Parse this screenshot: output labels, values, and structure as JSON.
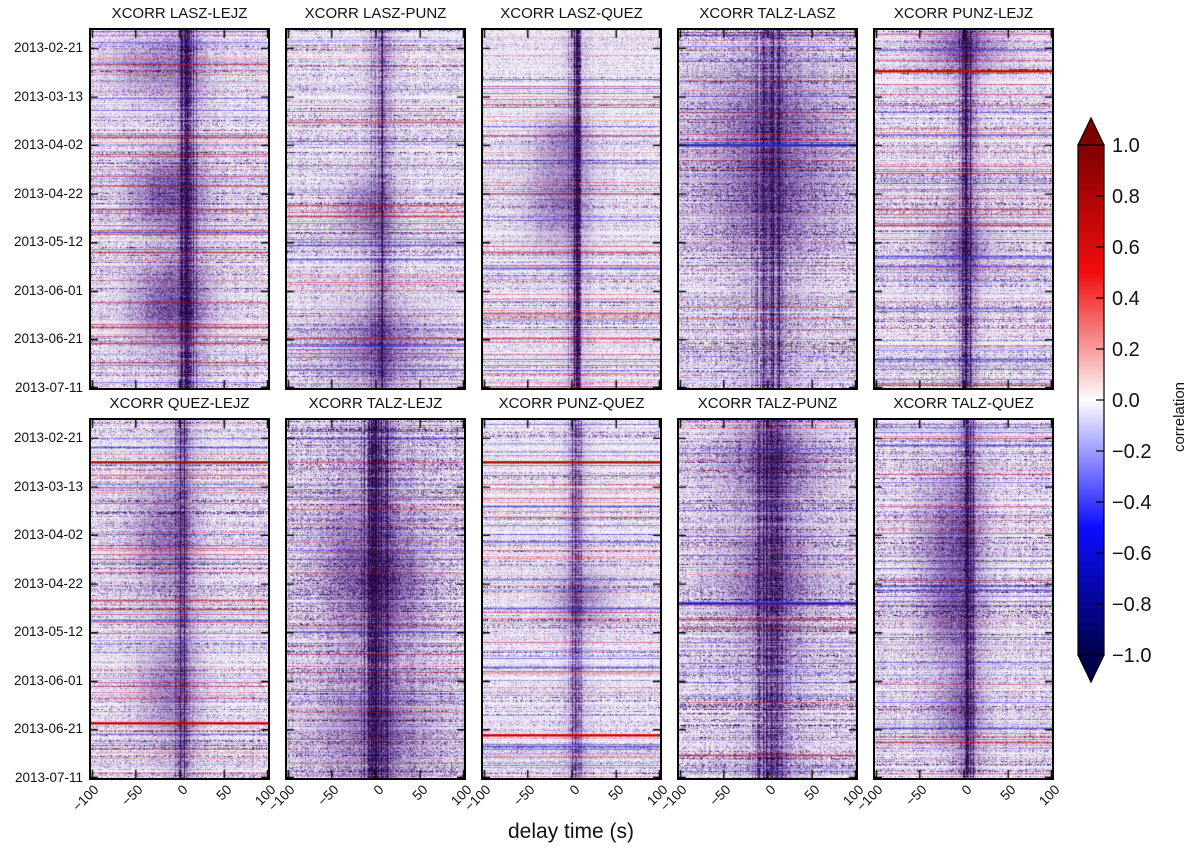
{
  "chart_data": {
    "type": "heatmap",
    "layout": {
      "rows": 2,
      "cols": 5,
      "grid": true
    },
    "xlabel": "delay time (s)",
    "x_range": [
      -100,
      100
    ],
    "x_ticks": [
      -100,
      -50,
      0,
      50,
      100
    ],
    "x_tick_labels": [
      "−100",
      "−50",
      "0",
      "50",
      "100"
    ],
    "y_tick_labels": [
      "2013-02-21",
      "2013-03-13",
      "2013-04-02",
      "2013-04-22",
      "2013-05-12",
      "2013-06-01",
      "2013-06-21",
      "2013-07-11"
    ],
    "colorbar": {
      "label": "correlation",
      "range": [
        -1.0,
        1.0
      ],
      "ticks": [
        "1.0",
        "0.8",
        "0.6",
        "0.4",
        "0.2",
        "0.0",
        "−0.2",
        "−0.4",
        "−0.6",
        "−0.8",
        "−1.0"
      ],
      "colormap": "seismic",
      "extend": "both",
      "colors": {
        "top": "#7f0000",
        "mid_red": "#f20d0d",
        "zero": "#fdfcff",
        "mid_blue": "#0d0dff",
        "bottom": "#00004d"
      }
    },
    "heatmap_colors": {
      "background": "#f7f4fb",
      "mid_purple": "#7a54a8",
      "dark_purple": "#260848",
      "red_event": "#cc1408",
      "blue_event": "#3136c8"
    },
    "panels": [
      {
        "title": "XCORR LASZ-LEJZ",
        "row": 0,
        "col": 0,
        "seed": 11,
        "noise": 0.55,
        "tint": 1.0,
        "band": {
          "center": 0.545,
          "width": 4.0,
          "strength": 0.95
        },
        "blobs": [
          {
            "x": 0.42,
            "y": 0.46,
            "rx": 0.13,
            "ry": 0.07,
            "a": 0.5
          },
          {
            "x": 0.44,
            "y": 0.77,
            "rx": 0.14,
            "ry": 0.08,
            "a": 0.55
          },
          {
            "x": 0.37,
            "y": 0.1,
            "rx": 0.16,
            "ry": 0.06,
            "a": 0.32
          }
        ],
        "lines": [
          {
            "y": 0.095,
            "color": "red",
            "type": "speckle"
          },
          {
            "y": 0.3,
            "color": "red",
            "type": "speckle"
          },
          {
            "y": 0.5,
            "color": "red",
            "type": "speckle"
          },
          {
            "y": 0.565,
            "color": "blue",
            "type": "speckle"
          },
          {
            "y": 0.62,
            "color": "red",
            "type": "speckle"
          },
          {
            "y": 0.83,
            "color": "red",
            "type": "speckle"
          },
          {
            "y": 0.875,
            "color": "red",
            "type": "speckle"
          }
        ]
      },
      {
        "title": "XCORR LASZ-PUNZ",
        "row": 0,
        "col": 1,
        "seed": 22,
        "noise": 0.55,
        "tint": 1.0,
        "band": {
          "center": 0.53,
          "width": 3.5,
          "strength": 0.9
        },
        "blobs": [
          {
            "x": 0.45,
            "y": 0.5,
            "rx": 0.11,
            "ry": 0.06,
            "a": 0.32
          },
          {
            "x": 0.5,
            "y": 0.88,
            "rx": 0.2,
            "ry": 0.08,
            "a": 0.38
          }
        ],
        "lines": [
          {
            "y": 0.49,
            "color": "red",
            "type": "speckle"
          },
          {
            "y": 0.52,
            "color": "red",
            "type": "speckle"
          },
          {
            "y": 0.6,
            "color": "blue",
            "type": "speckle"
          },
          {
            "y": 0.64,
            "color": "blue",
            "type": "speckle"
          },
          {
            "y": 0.86,
            "color": "red",
            "type": "speckle"
          }
        ]
      },
      {
        "title": "XCORR LASZ-QUEZ",
        "row": 0,
        "col": 2,
        "seed": 33,
        "noise": 0.4,
        "tint": 0.9,
        "band": {
          "center": 0.52,
          "width": 2.6,
          "strength": 0.95
        },
        "blobs": [
          {
            "x": 0.42,
            "y": 0.47,
            "rx": 0.12,
            "ry": 0.09,
            "a": 0.38
          },
          {
            "x": 0.45,
            "y": 0.3,
            "rx": 0.1,
            "ry": 0.05,
            "a": 0.26
          }
        ],
        "lines": [
          {
            "y": 0.62,
            "color": "red",
            "type": "speckle"
          },
          {
            "y": 0.665,
            "color": "blue",
            "type": "speckle"
          },
          {
            "y": 0.79,
            "color": "red",
            "type": "speckle"
          },
          {
            "y": 0.86,
            "color": "red",
            "type": "speckle"
          }
        ]
      },
      {
        "title": "XCORR TALZ-LASZ",
        "row": 0,
        "col": 3,
        "seed": 44,
        "noise": 0.78,
        "tint": 0.8,
        "band": {
          "center": 0.52,
          "width": 7.0,
          "strength": 0.8
        },
        "blobs": [
          {
            "x": 0.5,
            "y": 0.25,
            "rx": 0.3,
            "ry": 0.1,
            "a": 0.3
          },
          {
            "x": 0.52,
            "y": 0.47,
            "rx": 0.25,
            "ry": 0.1,
            "a": 0.35
          }
        ],
        "lines": [
          {
            "y": 0.32,
            "color": "blue",
            "type": "solid"
          },
          {
            "y": 0.015,
            "color": "blue",
            "type": "speckle"
          }
        ]
      },
      {
        "title": "XCORR PUNZ-LEJZ",
        "row": 0,
        "col": 4,
        "seed": 55,
        "noise": 0.6,
        "tint": 1.1,
        "band": {
          "center": 0.52,
          "width": 3.0,
          "strength": 1.0
        },
        "blobs": [
          {
            "x": 0.5,
            "y": 0.05,
            "rx": 0.15,
            "ry": 0.05,
            "a": 0.42
          },
          {
            "x": 0.48,
            "y": 0.6,
            "rx": 0.12,
            "ry": 0.06,
            "a": 0.3
          }
        ],
        "lines": [
          {
            "y": 0.115,
            "color": "red",
            "type": "solid"
          },
          {
            "y": 0.5,
            "color": "red",
            "type": "speckle"
          },
          {
            "y": 0.545,
            "color": "red",
            "type": "speckle"
          },
          {
            "y": 0.63,
            "color": "blue",
            "type": "speckle"
          },
          {
            "y": 0.66,
            "color": "blue",
            "type": "speckle"
          },
          {
            "y": 0.92,
            "color": "blue",
            "type": "speckle"
          }
        ]
      },
      {
        "title": "XCORR QUEZ-LEJZ",
        "row": 1,
        "col": 0,
        "seed": 66,
        "noise": 0.55,
        "tint": 1.0,
        "band": {
          "center": 0.51,
          "width": 3.5,
          "strength": 0.95
        },
        "blobs": [
          {
            "x": 0.4,
            "y": 0.33,
            "rx": 0.12,
            "ry": 0.1,
            "a": 0.36
          },
          {
            "x": 0.42,
            "y": 0.75,
            "rx": 0.12,
            "ry": 0.1,
            "a": 0.3
          }
        ],
        "lines": [
          {
            "y": 0.075,
            "color": "blue",
            "type": "speckle"
          },
          {
            "y": 0.117,
            "color": "red",
            "type": "solid"
          },
          {
            "y": 0.503,
            "color": "red",
            "type": "speckle"
          },
          {
            "y": 0.527,
            "color": "red",
            "type": "speckle"
          },
          {
            "y": 0.56,
            "color": "blue",
            "type": "speckle"
          },
          {
            "y": 0.845,
            "color": "red",
            "type": "solid"
          }
        ]
      },
      {
        "title": "XCORR TALZ-LEJZ",
        "row": 1,
        "col": 1,
        "seed": 77,
        "noise": 0.8,
        "tint": 0.7,
        "band": {
          "center": 0.52,
          "width": 8.0,
          "strength": 0.8
        },
        "blobs": [
          {
            "x": 0.38,
            "y": 0.42,
            "rx": 0.15,
            "ry": 0.12,
            "a": 0.35
          },
          {
            "x": 0.62,
            "y": 0.45,
            "rx": 0.12,
            "ry": 0.1,
            "a": 0.3
          },
          {
            "x": 0.5,
            "y": 0.85,
            "rx": 0.25,
            "ry": 0.1,
            "a": 0.3
          }
        ],
        "lines": [
          {
            "y": 0.05,
            "color": "blue",
            "type": "speckle"
          }
        ]
      },
      {
        "title": "XCORR PUNZ-QUEZ",
        "row": 1,
        "col": 2,
        "seed": 88,
        "noise": 0.45,
        "tint": 1.0,
        "band": {
          "center": 0.52,
          "width": 2.6,
          "strength": 1.0
        },
        "blobs": [
          {
            "x": 0.55,
            "y": 0.5,
            "rx": 0.12,
            "ry": 0.05,
            "a": 0.32
          }
        ],
        "lines": [
          {
            "y": 0.118,
            "color": "red",
            "type": "solid"
          },
          {
            "y": 0.24,
            "color": "blue",
            "type": "speckle"
          },
          {
            "y": 0.525,
            "color": "blue",
            "type": "speckle"
          },
          {
            "y": 0.69,
            "color": "blue",
            "type": "speckle"
          },
          {
            "y": 0.88,
            "color": "red",
            "type": "solid"
          },
          {
            "y": 0.91,
            "color": "blue",
            "type": "speckle"
          }
        ]
      },
      {
        "title": "XCORR TALZ-PUNZ",
        "row": 1,
        "col": 3,
        "seed": 99,
        "noise": 0.8,
        "tint": 0.8,
        "band": {
          "center": 0.53,
          "width": 7.0,
          "strength": 0.85
        },
        "blobs": [
          {
            "x": 0.52,
            "y": 0.12,
            "rx": 0.2,
            "ry": 0.08,
            "a": 0.35
          },
          {
            "x": 0.5,
            "y": 0.45,
            "rx": 0.2,
            "ry": 0.1,
            "a": 0.3
          }
        ],
        "lines": [
          {
            "y": 0.51,
            "color": "blue",
            "type": "solid"
          },
          {
            "y": 0.555,
            "color": "red",
            "type": "speckle"
          },
          {
            "y": 0.935,
            "color": "red",
            "type": "speckle"
          }
        ]
      },
      {
        "title": "XCORR TALZ-QUEZ",
        "row": 1,
        "col": 4,
        "seed": 110,
        "noise": 0.65,
        "tint": 0.9,
        "band": {
          "center": 0.52,
          "width": 3.5,
          "strength": 0.95
        },
        "blobs": [
          {
            "x": 0.42,
            "y": 0.33,
            "rx": 0.12,
            "ry": 0.12,
            "a": 0.42
          },
          {
            "x": 0.42,
            "y": 0.55,
            "rx": 0.1,
            "ry": 0.08,
            "a": 0.36
          },
          {
            "x": 0.45,
            "y": 0.8,
            "rx": 0.1,
            "ry": 0.07,
            "a": 0.3
          }
        ],
        "lines": [
          {
            "y": 0.07,
            "color": "blue",
            "type": "speckle"
          },
          {
            "y": 0.475,
            "color": "blue",
            "type": "speckle"
          },
          {
            "y": 0.86,
            "color": "blue",
            "type": "speckle"
          },
          {
            "y": 0.9,
            "color": "red",
            "type": "speckle"
          }
        ]
      }
    ]
  }
}
